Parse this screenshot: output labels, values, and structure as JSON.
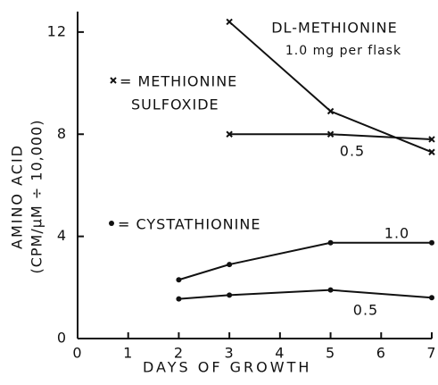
{
  "chart_data": {
    "type": "line",
    "xlabel": "DAYS OF GROWTH",
    "ylabel": [
      "AMINO ACID",
      "(CPM/μM ÷ 10,000)"
    ],
    "xlim": [
      0,
      7
    ],
    "xticks": [
      0,
      1,
      2,
      3,
      4,
      5,
      6,
      7
    ],
    "ylim": [
      0,
      12.8
    ],
    "yticks": [
      0,
      4,
      8,
      12
    ],
    "annotations": [
      "DL-METHIONINE"
    ],
    "legend": [
      {
        "marker": "x",
        "label": [
          "= METHIONINE",
          "SULFOXIDE"
        ]
      },
      {
        "marker": "o",
        "label": [
          "= CYSTATHIONINE"
        ]
      }
    ],
    "series": [
      {
        "name": "1.0 mg per flask",
        "marker": "x",
        "color": "#111111",
        "x": [
          3,
          5,
          7
        ],
        "values": [
          12.4,
          8.9,
          7.3
        ]
      },
      {
        "name": "0.5",
        "marker": "x",
        "color": "#111111",
        "x": [
          3,
          5,
          7
        ],
        "values": [
          8.0,
          8.0,
          7.8
        ]
      },
      {
        "name": "1.0",
        "marker": "o",
        "color": "#111111",
        "x": [
          2,
          3,
          5,
          7
        ],
        "values": [
          2.3,
          2.9,
          3.75,
          3.75
        ]
      },
      {
        "name": "0.5",
        "marker": "o",
        "color": "#111111",
        "x": [
          2,
          3,
          5,
          7
        ],
        "values": [
          1.55,
          1.7,
          1.9,
          1.6
        ]
      }
    ]
  }
}
